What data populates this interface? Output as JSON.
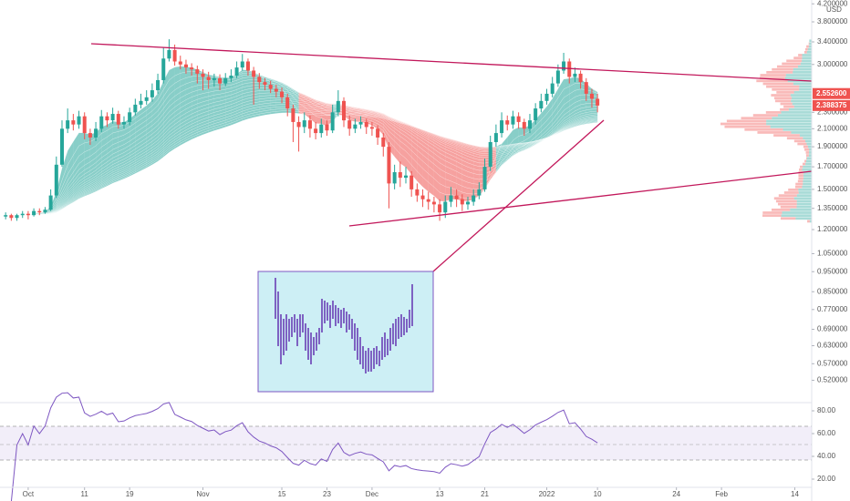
{
  "chart_data": {
    "type": "candlestick",
    "currency": "USD",
    "log_scale": true,
    "grid": false,
    "up_color": "#26a69a",
    "down_color": "#ef5350",
    "x": [
      "2021-09-27",
      "2021-09-28",
      "2021-09-29",
      "2021-09-30",
      "2021-10-01",
      "2021-10-02",
      "2021-10-03",
      "2021-10-04",
      "2021-10-05",
      "2021-10-06",
      "2021-10-07",
      "2021-10-08",
      "2021-10-09",
      "2021-10-10",
      "2021-10-11",
      "2021-10-12",
      "2021-10-13",
      "2021-10-14",
      "2021-10-15",
      "2021-10-16",
      "2021-10-17",
      "2021-10-18",
      "2021-10-19",
      "2021-10-20",
      "2021-10-21",
      "2021-10-22",
      "2021-10-23",
      "2021-10-24",
      "2021-10-25",
      "2021-10-26",
      "2021-10-27",
      "2021-10-28",
      "2021-10-29",
      "2021-10-30",
      "2021-10-31",
      "2021-11-01",
      "2021-11-02",
      "2021-11-03",
      "2021-11-04",
      "2021-11-05",
      "2021-11-06",
      "2021-11-07",
      "2021-11-08",
      "2021-11-09",
      "2021-11-10",
      "2021-11-11",
      "2021-11-12",
      "2021-11-13",
      "2021-11-14",
      "2021-11-15",
      "2021-11-16",
      "2021-11-17",
      "2021-11-18",
      "2021-11-19",
      "2021-11-20",
      "2021-11-21",
      "2021-11-22",
      "2021-11-23",
      "2021-11-24",
      "2021-11-25",
      "2021-11-26",
      "2021-11-27",
      "2021-11-28",
      "2021-11-29",
      "2021-11-30",
      "2021-12-01",
      "2021-12-02",
      "2021-12-03",
      "2021-12-04",
      "2021-12-05",
      "2021-12-06",
      "2021-12-07",
      "2021-12-08",
      "2021-12-09",
      "2021-12-10",
      "2021-12-11",
      "2021-12-12",
      "2021-12-13",
      "2021-12-14",
      "2021-12-15",
      "2021-12-16",
      "2021-12-17",
      "2021-12-18",
      "2021-12-19",
      "2021-12-20",
      "2021-12-21",
      "2021-12-22",
      "2021-12-23",
      "2021-12-24",
      "2021-12-25",
      "2021-12-26",
      "2021-12-27",
      "2021-12-28",
      "2021-12-29",
      "2021-12-30",
      "2021-12-31",
      "2022-01-01",
      "2022-01-02",
      "2022-01-03",
      "2022-01-04",
      "2022-01-05",
      "2022-01-06",
      "2022-01-07",
      "2022-01-08",
      "2022-01-09",
      "2022-01-10"
    ],
    "open": [
      1.29,
      1.3,
      1.28,
      1.3,
      1.31,
      1.3,
      1.33,
      1.32,
      1.34,
      1.45,
      1.72,
      2.1,
      2.2,
      2.15,
      2.25,
      2.05,
      2.0,
      2.1,
      2.25,
      2.2,
      2.28,
      2.15,
      2.18,
      2.3,
      2.4,
      2.45,
      2.5,
      2.6,
      2.75,
      3.1,
      3.25,
      3.05,
      3.0,
      2.95,
      2.92,
      2.85,
      2.8,
      2.75,
      2.78,
      2.7,
      2.78,
      2.82,
      2.95,
      3.05,
      2.9,
      2.8,
      2.72,
      2.68,
      2.62,
      2.58,
      2.5,
      2.35,
      2.18,
      2.12,
      2.2,
      2.1,
      2.05,
      2.15,
      2.08,
      2.3,
      2.45,
      2.2,
      2.1,
      2.15,
      2.18,
      2.12,
      2.1,
      2.0,
      1.9,
      1.55,
      1.65,
      1.6,
      1.62,
      1.5,
      1.45,
      1.42,
      1.4,
      1.38,
      1.32,
      1.4,
      1.45,
      1.42,
      1.38,
      1.4,
      1.45,
      1.5,
      1.7,
      1.95,
      2.05,
      2.2,
      2.15,
      2.25,
      2.18,
      2.1,
      2.2,
      2.35,
      2.45,
      2.55,
      2.7,
      2.9,
      3.05,
      2.8,
      2.85,
      2.72,
      2.55,
      2.48
    ],
    "high": [
      1.32,
      1.31,
      1.31,
      1.33,
      1.33,
      1.35,
      1.35,
      1.36,
      1.5,
      1.8,
      2.2,
      2.35,
      2.28,
      2.32,
      2.3,
      2.1,
      2.18,
      2.33,
      2.3,
      2.36,
      2.32,
      2.25,
      2.36,
      2.48,
      2.55,
      2.6,
      2.7,
      2.85,
      3.3,
      3.45,
      3.35,
      3.15,
      3.08,
      3.02,
      2.98,
      2.92,
      2.88,
      2.85,
      2.84,
      2.86,
      2.92,
      3.05,
      3.18,
      3.1,
      2.96,
      2.86,
      2.78,
      2.74,
      2.68,
      2.64,
      2.55,
      2.4,
      2.25,
      2.3,
      2.26,
      2.18,
      2.22,
      2.2,
      2.4,
      2.6,
      2.5,
      2.26,
      2.22,
      2.25,
      2.22,
      2.18,
      2.14,
      2.05,
      1.95,
      1.72,
      1.75,
      1.7,
      1.66,
      1.55,
      1.5,
      1.48,
      1.44,
      1.42,
      1.45,
      1.52,
      1.5,
      1.46,
      1.44,
      1.5,
      1.56,
      1.78,
      2.02,
      2.15,
      2.3,
      2.26,
      2.32,
      2.3,
      2.22,
      2.28,
      2.42,
      2.55,
      2.62,
      2.8,
      3.0,
      3.2,
      3.1,
      2.95,
      2.9,
      2.78,
      2.62,
      2.55
    ],
    "low": [
      1.27,
      1.26,
      1.26,
      1.28,
      1.27,
      1.29,
      1.3,
      1.31,
      1.33,
      1.43,
      1.7,
      2.05,
      2.08,
      2.1,
      1.98,
      1.92,
      1.96,
      2.06,
      2.12,
      2.16,
      2.1,
      2.1,
      2.14,
      2.26,
      2.35,
      2.4,
      2.44,
      2.55,
      2.7,
      3.05,
      2.98,
      2.92,
      2.85,
      2.82,
      2.7,
      2.6,
      2.62,
      2.65,
      2.6,
      2.66,
      2.72,
      2.78,
      2.9,
      2.82,
      2.4,
      2.62,
      2.6,
      2.56,
      2.5,
      2.42,
      2.25,
      1.95,
      1.85,
      2.05,
      2.0,
      1.98,
      2.0,
      2.02,
      2.05,
      2.25,
      2.12,
      2.02,
      2.05,
      2.1,
      2.04,
      2.02,
      1.92,
      1.8,
      1.35,
      1.5,
      1.52,
      1.55,
      1.44,
      1.4,
      1.36,
      1.34,
      1.32,
      1.26,
      1.28,
      1.36,
      1.36,
      1.33,
      1.34,
      1.37,
      1.42,
      1.48,
      1.66,
      1.9,
      2.0,
      2.08,
      2.1,
      2.1,
      2.02,
      2.05,
      2.15,
      2.3,
      2.4,
      2.5,
      2.65,
      2.85,
      2.7,
      2.72,
      2.62,
      2.45,
      2.36,
      2.3
    ],
    "close": [
      1.3,
      1.28,
      1.3,
      1.31,
      1.3,
      1.33,
      1.32,
      1.34,
      1.45,
      1.72,
      2.1,
      2.2,
      2.15,
      2.25,
      2.05,
      2.0,
      2.1,
      2.25,
      2.2,
      2.28,
      2.15,
      2.18,
      2.3,
      2.4,
      2.45,
      2.5,
      2.6,
      2.75,
      3.1,
      3.25,
      3.05,
      3.0,
      2.95,
      2.92,
      2.85,
      2.8,
      2.75,
      2.78,
      2.7,
      2.78,
      2.82,
      2.95,
      3.05,
      2.9,
      2.8,
      2.72,
      2.68,
      2.62,
      2.58,
      2.5,
      2.35,
      2.18,
      2.12,
      2.2,
      2.1,
      2.05,
      2.15,
      2.08,
      2.3,
      2.45,
      2.2,
      2.1,
      2.15,
      2.18,
      2.12,
      2.1,
      2.0,
      1.9,
      1.55,
      1.65,
      1.6,
      1.62,
      1.5,
      1.45,
      1.42,
      1.4,
      1.38,
      1.32,
      1.4,
      1.45,
      1.42,
      1.38,
      1.4,
      1.45,
      1.5,
      1.7,
      1.95,
      2.05,
      2.2,
      2.15,
      2.25,
      2.18,
      2.1,
      2.2,
      2.35,
      2.45,
      2.55,
      2.7,
      2.9,
      3.05,
      2.8,
      2.85,
      2.72,
      2.55,
      2.48,
      2.388375
    ],
    "xlim": [
      "2021-09-26",
      "2022-02-17"
    ],
    "xticks": [
      {
        "value": "2021-10-01",
        "label": "Oct"
      },
      {
        "value": "2021-10-11",
        "label": "11"
      },
      {
        "value": "2021-10-19",
        "label": "19"
      },
      {
        "value": "2021-11-01",
        "label": "Nov"
      },
      {
        "value": "2021-11-15",
        "label": "15"
      },
      {
        "value": "2021-11-23",
        "label": "23"
      },
      {
        "value": "2021-12-01",
        "label": "Dec"
      },
      {
        "value": "2021-12-13",
        "label": "13"
      },
      {
        "value": "2021-12-21",
        "label": "21"
      },
      {
        "value": "2022-01-01",
        "label": "2022"
      },
      {
        "value": "2022-01-10",
        "label": "10"
      },
      {
        "value": "2022-01-24",
        "label": "24"
      },
      {
        "value": "2022-02-01",
        "label": "Feb"
      },
      {
        "value": "2022-02-14",
        "label": "14"
      }
    ],
    "ylim": [
      0.464,
      4.29
    ],
    "yticks": [
      {
        "value": 4.2,
        "label": "4.200000"
      },
      {
        "value": 3.8,
        "label": "3.800000"
      },
      {
        "value": 3.4,
        "label": "3.400000"
      },
      {
        "value": 3.0,
        "label": "3.000000"
      },
      {
        "value": 2.3,
        "label": "2.300000"
      },
      {
        "value": 2.1,
        "label": "2.100000"
      },
      {
        "value": 1.9,
        "label": "1.900000"
      },
      {
        "value": 1.7,
        "label": "1.700000"
      },
      {
        "value": 1.5,
        "label": "1.500000"
      },
      {
        "value": 1.35,
        "label": "1.350000"
      },
      {
        "value": 1.2,
        "label": "1.200000"
      },
      {
        "value": 1.05,
        "label": "1.050000"
      },
      {
        "value": 0.95,
        "label": "0.950000"
      },
      {
        "value": 0.85,
        "label": "0.850000"
      },
      {
        "value": 0.77,
        "label": "0.770000"
      },
      {
        "value": 0.69,
        "label": "0.690000"
      },
      {
        "value": 0.63,
        "label": "0.630000"
      },
      {
        "value": 0.57,
        "label": "0.570000"
      },
      {
        "value": 0.52,
        "label": "0.520000"
      }
    ],
    "price_labels": [
      {
        "value": 2.5526,
        "label": "2.552600"
      },
      {
        "value": 2.388375,
        "label": "2.388375"
      }
    ],
    "rsi": {
      "color": "#7e57c2",
      "ylim": [
        8.8,
        86.4
      ],
      "yticks": [
        {
          "value": 80,
          "label": "80.00"
        },
        {
          "value": 60,
          "label": "60.00"
        },
        {
          "value": 40,
          "label": "40.00"
        },
        {
          "value": 20,
          "label": "20.00"
        }
      ]
    }
  }
}
